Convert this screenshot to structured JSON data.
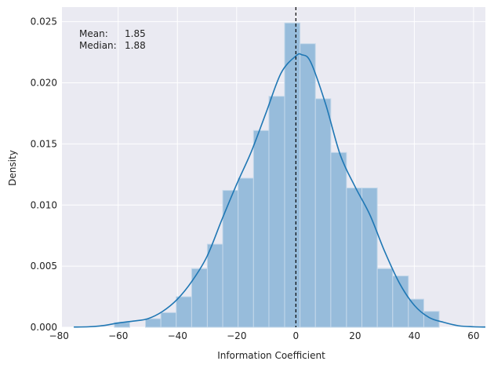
{
  "chart_data": {
    "type": "histogram",
    "xlabel": "Information Coefficient",
    "ylabel": "Density",
    "xlim": [
      -79,
      64
    ],
    "ylim": [
      0,
      0.0262
    ],
    "grid": true,
    "xticks": [
      -80,
      -60,
      -40,
      -20,
      0,
      20,
      40,
      60
    ],
    "xtick_labels": [
      "−80",
      "−60",
      "−40",
      "−20",
      "0",
      "20",
      "40",
      "60"
    ],
    "yticks": [
      0.0,
      0.005,
      0.01,
      0.015,
      0.02,
      0.025
    ],
    "ytick_labels": [
      "0.000",
      "0.005",
      "0.010",
      "0.015",
      "0.020",
      "0.025"
    ],
    "bins": [
      {
        "x0": -61.3,
        "x1": -56.1,
        "density": 0.0004
      },
      {
        "x0": -50.8,
        "x1": -45.6,
        "density": 0.0007
      },
      {
        "x0": -45.6,
        "x1": -40.4,
        "density": 0.0012
      },
      {
        "x0": -40.4,
        "x1": -35.2,
        "density": 0.0025
      },
      {
        "x0": -35.2,
        "x1": -29.9,
        "density": 0.0048
      },
      {
        "x0": -29.9,
        "x1": -24.7,
        "density": 0.0068
      },
      {
        "x0": -24.7,
        "x1": -19.5,
        "density": 0.0112
      },
      {
        "x0": -19.5,
        "x1": -14.3,
        "density": 0.0122
      },
      {
        "x0": -14.3,
        "x1": -9.1,
        "density": 0.0161
      },
      {
        "x0": -9.1,
        "x1": -3.8,
        "density": 0.0189
      },
      {
        "x0": -3.8,
        "x1": 1.4,
        "density": 0.0249
      },
      {
        "x0": 1.4,
        "x1": 6.6,
        "density": 0.0232
      },
      {
        "x0": 6.6,
        "x1": 11.8,
        "density": 0.0187
      },
      {
        "x0": 11.8,
        "x1": 17.1,
        "density": 0.0143
      },
      {
        "x0": 17.1,
        "x1": 22.3,
        "density": 0.0114
      },
      {
        "x0": 22.3,
        "x1": 27.5,
        "density": 0.0114
      },
      {
        "x0": 27.5,
        "x1": 32.7,
        "density": 0.0048
      },
      {
        "x0": 32.7,
        "x1": 38.0,
        "density": 0.0042
      },
      {
        "x0": 38.0,
        "x1": 43.2,
        "density": 0.0023
      },
      {
        "x0": 43.2,
        "x1": 48.4,
        "density": 0.0013
      }
    ],
    "kde": {
      "x": [
        -75,
        -70,
        -65,
        -60,
        -55,
        -50,
        -45,
        -40,
        -35,
        -30,
        -25,
        -20,
        -15,
        -10,
        -5,
        0,
        2,
        5,
        10,
        15,
        20,
        25,
        30,
        35,
        40,
        45,
        50,
        55,
        60,
        64
      ],
      "y": [
        2e-05,
        4e-05,
        0.00014,
        0.00035,
        0.0005,
        0.0007,
        0.0013,
        0.0023,
        0.0038,
        0.0058,
        0.0088,
        0.0117,
        0.0144,
        0.0176,
        0.0208,
        0.0222,
        0.0223,
        0.0217,
        0.0183,
        0.0141,
        0.0115,
        0.0092,
        0.0062,
        0.0036,
        0.0018,
        0.0008,
        0.0004,
        0.00012,
        4e-05,
        2e-05
      ]
    },
    "vline_x": 0,
    "annotation": {
      "mean_label": "Mean:",
      "mean_value": "1.85",
      "median_label": "Median:",
      "median_value": "1.88"
    },
    "colors": {
      "axes_bg": "#eaeaf2",
      "grid": "#ffffff",
      "bar_fill": "#97bcdb",
      "bar_edge": "#c5d8ea",
      "kde_line": "#1f77b4",
      "vline": "#000000"
    }
  }
}
